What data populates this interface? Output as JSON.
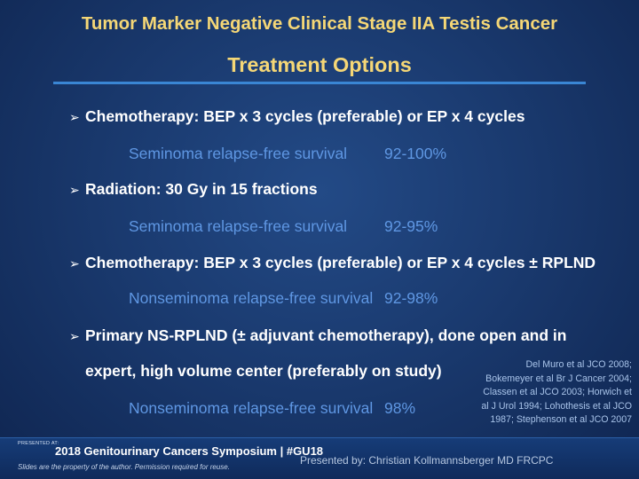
{
  "slide": {
    "title_line1": "Tumor Marker Negative Clinical Stage IIA Testis Cancer",
    "title_line2": "Treatment Options",
    "bullet_glyph": "➢",
    "items": [
      {
        "bullet": "Chemotherapy:  BEP x 3 cycles (preferable) or EP x 4 cycles",
        "detail_label": "Seminoma relapse-free survival",
        "detail_value": "92-100%"
      },
      {
        "bullet": "Radiation:   30 Gy in 15 fractions",
        "detail_label": "Seminoma relapse-free survival",
        "detail_value": "92-95%"
      },
      {
        "bullet": "Chemotherapy:  BEP x 3 cycles (preferable) or EP x 4 cycles ± RPLND",
        "detail_label": "Nonseminoma relapse-free survival",
        "detail_value": "92-98%"
      },
      {
        "bullet": "Primary NS-RPLND (± adjuvant chemotherapy), done open and in",
        "bullet_continuation": "expert, high volume center (preferably on study)",
        "detail_label": "Nonseminoma relapse-free survival",
        "detail_value": "98%"
      }
    ],
    "references": [
      "Del Muro et al JCO 2008;",
      "Bokemeyer et al Br J Cancer 2004;",
      "Classen et al JCO 2003; Horwich et",
      "al J Urol 1994; Lohothesis et al JCO",
      "1987; Stephenson et al JCO 2007"
    ]
  },
  "footer": {
    "presented_at": "PRESENTED AT:",
    "symposium": "2018 Genitourinary Cancers Symposium | #GU18",
    "slides_note": "Slides are the property of the author. Permission required for reuse.",
    "presenter": "Presented by: Christian Kollmannsberger MD FRCPC"
  }
}
